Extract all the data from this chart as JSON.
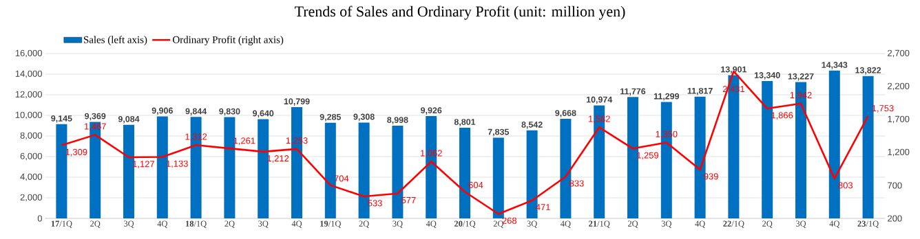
{
  "chart_data": {
    "type": "bar",
    "title": "Trends of Sales and Ordinary Profit (unit: million yen)",
    "categories": [
      "**17**/1Q",
      "2Q",
      "3Q",
      "4Q",
      "**18**/1Q",
      "2Q",
      "3Q",
      "4Q",
      "**19**/1Q",
      "2Q",
      "3Q",
      "4Q",
      "**20**/1Q",
      "2Q",
      "3Q",
      "4Q",
      "**21**/1Q",
      "2Q",
      "3Q",
      "4Q",
      "**22**/1Q",
      "2Q",
      "3Q",
      "4Q",
      "**23**/1Q"
    ],
    "series": [
      {
        "name": "Sales (left axis)",
        "color": "#0070c0",
        "values": [
          9145,
          9369,
          9084,
          9906,
          9844,
          9830,
          9640,
          10799,
          9285,
          9308,
          8998,
          9926,
          8801,
          7835,
          8542,
          9668,
          10974,
          11776,
          11299,
          11817,
          13901,
          13340,
          13227,
          14343,
          13822
        ],
        "value_labels": [
          "9,145",
          "9,369",
          "9,084",
          "9,906",
          "9,844",
          "9,830",
          "9,640",
          "10,799",
          "9,285",
          "9,308",
          "8,998",
          "9,926",
          "8,801",
          "7,835",
          "8,542",
          "9,668",
          "10,974",
          "11,776",
          "11,299",
          "11,817",
          "13,901",
          "13,340",
          "13,227",
          "14,343",
          "13,822"
        ]
      },
      {
        "name": "Ordinary Profit (right axis)",
        "type": "line",
        "axis": "y2",
        "color": "#ff0000",
        "values": [
          1309,
          1467,
          1127,
          1133,
          1312,
          1261,
          1212,
          1253,
          704,
          533,
          577,
          1062,
          604,
          268,
          471,
          833,
          1582,
          1259,
          1350,
          939,
          2431,
          1866,
          1942,
          803,
          1753
        ],
        "value_labels": [
          "1,309",
          "1,467",
          "1,127",
          "1,133",
          "1,312",
          "1,261",
          "1,212",
          "1,253",
          "704",
          "533",
          "577",
          "1,062",
          "604",
          "268",
          "471",
          "833",
          "1,582",
          "1,259",
          "1,350",
          "939",
          "2,431",
          "1,866",
          "1,942",
          "803",
          "1,753"
        ]
      }
    ],
    "ylim": [
      0,
      16000
    ],
    "yticks": [
      0,
      {
        "value": 2000,
        "label": "2,000"
      },
      {
        "value": 4000,
        "label": "4,000"
      },
      {
        "value": 6000,
        "label": "6,000"
      },
      {
        "value": 8000,
        "label": "8,000"
      },
      {
        "value": 10000,
        "label": "10,000"
      },
      {
        "value": 12000,
        "label": "12,000"
      },
      {
        "value": 14000,
        "label": "14,000"
      },
      {
        "value": 16000,
        "label": "16,000"
      }
    ],
    "y2lim": [
      200,
      2700
    ],
    "y2ticks": [
      200,
      700,
      {
        "value": 1200,
        "label": "1,200"
      },
      {
        "value": 1700,
        "label": "1,700"
      },
      {
        "value": 2200,
        "label": "2,200"
      },
      {
        "value": 2700,
        "label": "2,700"
      }
    ],
    "grid": "y",
    "legend": "top left"
  }
}
